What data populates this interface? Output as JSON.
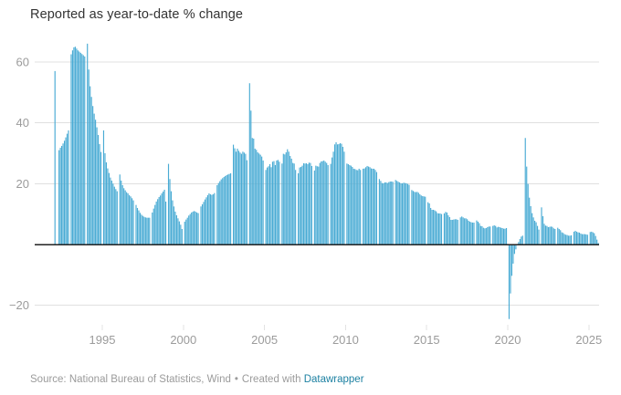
{
  "title": "Reported as year-to-date % change",
  "footer": {
    "source_label": "Source: National Bureau of Statistics, Wind",
    "separator": "•",
    "credit_prefix": "Created with",
    "credit_link": "Datawrapper"
  },
  "colors": {
    "bar": "#49abd4",
    "baseline": "#222222",
    "gridline": "#e0e0e0",
    "tick_mark": "#e3e3e3",
    "axis_label": "#9b9b9b",
    "title_text": "#333333",
    "footer_text": "#9b9b9b",
    "link": "#1d81a2"
  },
  "chart_data": {
    "type": "bar",
    "title": "Reported as year-to-date % change",
    "unit": "% change, year-to-date, monthly (Feb–Dec)",
    "legend": "none",
    "grid": "horizontal",
    "y_axis": {
      "ticks": [
        60,
        40,
        20,
        -20
      ],
      "baseline": 0,
      "min": -26,
      "max": 66
    },
    "x_axis": {
      "ticks": [
        1995,
        2000,
        2005,
        2010,
        2015,
        2020,
        2025
      ],
      "min": 1992,
      "max": 2025.7
    },
    "series": [
      {
        "year": 1992,
        "values": [
          57,
          null,
          null,
          31,
          31.8,
          32.4,
          33.2,
          34.1,
          35.2,
          36.4,
          37.5
        ]
      },
      {
        "year": 1993,
        "values": [
          62.5,
          63.8,
          64.8,
          65,
          64.4,
          63.8,
          63.4,
          63,
          62.6,
          62.2,
          61.8
        ]
      },
      {
        "year": 1994,
        "values": [
          66,
          57.5,
          52,
          48.5,
          45.5,
          43,
          41,
          38.5,
          36,
          33,
          30.4
        ]
      },
      {
        "year": 1995,
        "values": [
          37.5,
          30,
          27,
          25,
          23.5,
          22,
          21,
          20,
          19,
          18.2,
          17.5
        ]
      },
      {
        "year": 1996,
        "values": [
          23,
          21,
          19.5,
          18.5,
          17.8,
          17.2,
          16.8,
          16.2,
          15.8,
          15.2,
          14.5
        ]
      },
      {
        "year": 1997,
        "values": [
          13,
          12,
          11.2,
          10.4,
          9.8,
          9.4,
          9.1,
          8.9,
          8.8,
          8.8,
          8.8
        ]
      },
      {
        "year": 1998,
        "values": [
          10.5,
          11.8,
          13,
          14.1,
          14.9,
          15.6,
          16.1,
          16.8,
          17.4,
          18,
          14.1
        ]
      },
      {
        "year": 1999,
        "values": [
          26.5,
          21.5,
          17.5,
          14.5,
          12.5,
          10.8,
          9.6,
          8.6,
          7.6,
          6.5,
          5.1
        ]
      },
      {
        "year": 2000,
        "values": [
          7.5,
          8.2,
          8.8,
          9.5,
          10,
          10.5,
          10.8,
          11,
          10.8,
          10.5,
          10.3
        ]
      },
      {
        "year": 2001,
        "values": [
          12.5,
          13.2,
          14,
          14.8,
          15.5,
          16.2,
          16.8,
          16.5,
          16.3,
          16.5,
          16.9
        ]
      },
      {
        "year": 2002,
        "values": [
          19.5,
          20.2,
          20.8,
          21.4,
          21.8,
          22.2,
          22.5,
          22.8,
          23,
          23.2,
          23.4
        ]
      },
      {
        "year": 2003,
        "values": [
          32.8,
          31.6,
          30.5,
          31.5,
          30.8,
          30.2,
          29.8,
          30.5,
          30.2,
          29.8,
          27.7
        ]
      },
      {
        "year": 2004,
        "values": [
          53,
          44,
          35,
          34.8,
          31.5,
          31.1,
          30.3,
          29.9,
          29.5,
          28.9,
          27.6
        ]
      },
      {
        "year": 2005,
        "values": [
          24.5,
          25.3,
          25.7,
          26.4,
          25.4,
          27.2,
          27.4,
          26.1,
          27.6,
          27.8,
          27.2
        ]
      },
      {
        "year": 2006,
        "values": [
          26.6,
          29.8,
          29.6,
          30.3,
          31.3,
          30.5,
          29.1,
          28.2,
          26.8,
          26.6,
          24.5
        ]
      },
      {
        "year": 2007,
        "values": [
          23.4,
          25.3,
          25.5,
          25.9,
          26.7,
          26.6,
          26.7,
          26.4,
          26.9,
          26.8,
          25.8
        ]
      },
      {
        "year": 2008,
        "values": [
          24.3,
          25.9,
          25.7,
          25.6,
          26.8,
          27.3,
          27.4,
          27.6,
          27.2,
          26.8,
          26.1
        ]
      },
      {
        "year": 2009,
        "values": [
          26.5,
          28.6,
          30.5,
          32.9,
          33.6,
          32.9,
          33,
          33.3,
          33.1,
          32.1,
          30.5
        ]
      },
      {
        "year": 2010,
        "values": [
          26.6,
          26.4,
          26.1,
          25.9,
          25.5,
          24.9,
          24.8,
          24.5,
          24.4,
          24.9,
          24.5
        ]
      },
      {
        "year": 2011,
        "values": [
          24.9,
          25,
          25.4,
          25.8,
          25.6,
          25.4,
          25,
          24.9,
          24.9,
          24.5,
          23.8
        ]
      },
      {
        "year": 2012,
        "values": [
          21.5,
          20.9,
          20.2,
          20.1,
          20.4,
          20.4,
          20.2,
          20.5,
          20.7,
          20.7,
          20.6
        ]
      },
      {
        "year": 2013,
        "values": [
          21.2,
          20.9,
          20.6,
          20.4,
          20.1,
          20.1,
          20.3,
          20.2,
          20.1,
          19.9,
          19.6
        ]
      },
      {
        "year": 2014,
        "values": [
          17.9,
          17.6,
          17.3,
          17.2,
          17.3,
          17,
          16.5,
          16.1,
          15.9,
          15.8,
          15.7
        ]
      },
      {
        "year": 2015,
        "values": [
          13.9,
          13.5,
          12,
          11.4,
          11.4,
          11.2,
          10.9,
          10.3,
          10.2,
          10.2,
          10
        ]
      },
      {
        "year": 2016,
        "values": [
          10.2,
          10.7,
          10.5,
          9.6,
          9,
          8.1,
          8.1,
          8.2,
          8.3,
          8.3,
          8.1
        ]
      },
      {
        "year": 2017,
        "values": [
          8.9,
          9.2,
          8.9,
          8.6,
          8.6,
          8.3,
          7.8,
          7.5,
          7.3,
          7.2,
          7.2
        ]
      },
      {
        "year": 2018,
        "values": [
          7.9,
          7.5,
          7,
          6.1,
          6,
          5.5,
          5.3,
          5.4,
          5.7,
          5.9,
          5.9
        ]
      },
      {
        "year": 2019,
        "values": [
          6.1,
          6.3,
          6.1,
          5.6,
          5.8,
          5.7,
          5.5,
          5.4,
          5.2,
          5.2,
          5.4
        ]
      },
      {
        "year": 2020,
        "values": [
          -24.5,
          -16.1,
          -10.3,
          -6.3,
          -3.1,
          -1.6,
          -0.3,
          0.8,
          1.8,
          2.6,
          2.9
        ]
      },
      {
        "year": 2021,
        "values": [
          35,
          25.6,
          19.9,
          15.4,
          12.6,
          10.3,
          8.9,
          7.8,
          7.3,
          6.1,
          4.9
        ]
      },
      {
        "year": 2022,
        "values": [
          12.2,
          9.3,
          6.8,
          6.2,
          6.1,
          5.7,
          5.8,
          5.9,
          5.8,
          5.3,
          5.1
        ]
      },
      {
        "year": 2023,
        "values": [
          5.5,
          5.1,
          4.7,
          4,
          3.8,
          3.4,
          3.2,
          3.1,
          2.9,
          2.9,
          3
        ]
      },
      {
        "year": 2024,
        "values": [
          4.2,
          4.5,
          4.2,
          4,
          3.9,
          3.6,
          3.4,
          3.4,
          3.4,
          3.3,
          3.2
        ]
      },
      {
        "year": 2025,
        "values": [
          4.1,
          4.2,
          4,
          3.7,
          2.8,
          1.6,
          0.5
        ]
      }
    ]
  }
}
